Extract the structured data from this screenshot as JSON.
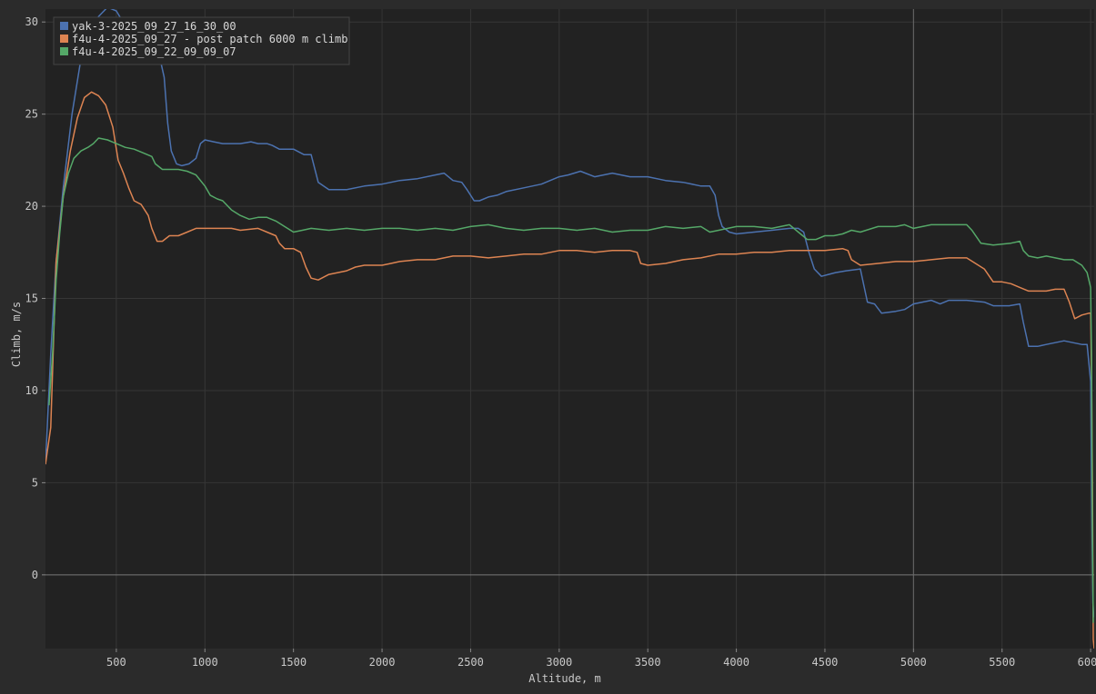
{
  "chart_data": {
    "type": "line",
    "xlabel": "Altitude, m",
    "ylabel": "Climb, m/s",
    "xlim": [
      100,
      6020
    ],
    "ylim": [
      -4,
      30.7
    ],
    "x_ticks": [
      500,
      1000,
      1500,
      2000,
      2500,
      3000,
      3500,
      4000,
      4500,
      5000,
      5500,
      6000
    ],
    "y_ticks": [
      0,
      5,
      10,
      15,
      20,
      25,
      30
    ],
    "grid": true,
    "legend_position": "top-left",
    "series": [
      {
        "name": "yak-3-2025_09_27_16_30_00",
        "color": "#4c72b0",
        "points": [
          [
            100,
            6
          ],
          [
            130,
            12
          ],
          [
            160,
            17
          ],
          [
            200,
            21
          ],
          [
            250,
            25
          ],
          [
            300,
            28
          ],
          [
            350,
            29.5
          ],
          [
            400,
            30.3
          ],
          [
            450,
            30.8
          ],
          [
            500,
            30.6
          ],
          [
            550,
            29.8
          ],
          [
            600,
            29
          ],
          [
            650,
            28.7
          ],
          [
            700,
            28.6
          ],
          [
            740,
            28.3
          ],
          [
            770,
            27
          ],
          [
            790,
            24.5
          ],
          [
            810,
            23
          ],
          [
            840,
            22.3
          ],
          [
            870,
            22.2
          ],
          [
            910,
            22.3
          ],
          [
            950,
            22.6
          ],
          [
            975,
            23.4
          ],
          [
            1000,
            23.6
          ],
          [
            1050,
            23.5
          ],
          [
            1100,
            23.4
          ],
          [
            1200,
            23.4
          ],
          [
            1260,
            23.5
          ],
          [
            1300,
            23.4
          ],
          [
            1350,
            23.4
          ],
          [
            1380,
            23.3
          ],
          [
            1420,
            23.1
          ],
          [
            1500,
            23.1
          ],
          [
            1560,
            22.8
          ],
          [
            1600,
            22.8
          ],
          [
            1640,
            21.3
          ],
          [
            1700,
            20.9
          ],
          [
            1800,
            20.9
          ],
          [
            1900,
            21.1
          ],
          [
            2000,
            21.2
          ],
          [
            2100,
            21.4
          ],
          [
            2200,
            21.5
          ],
          [
            2300,
            21.7
          ],
          [
            2350,
            21.8
          ],
          [
            2400,
            21.4
          ],
          [
            2450,
            21.3
          ],
          [
            2480,
            20.9
          ],
          [
            2520,
            20.3
          ],
          [
            2550,
            20.3
          ],
          [
            2600,
            20.5
          ],
          [
            2650,
            20.6
          ],
          [
            2700,
            20.8
          ],
          [
            2800,
            21.0
          ],
          [
            2900,
            21.2
          ],
          [
            3000,
            21.6
          ],
          [
            3050,
            21.7
          ],
          [
            3120,
            21.9
          ],
          [
            3200,
            21.6
          ],
          [
            3300,
            21.8
          ],
          [
            3400,
            21.6
          ],
          [
            3500,
            21.6
          ],
          [
            3600,
            21.4
          ],
          [
            3700,
            21.3
          ],
          [
            3800,
            21.1
          ],
          [
            3850,
            21.1
          ],
          [
            3880,
            20.6
          ],
          [
            3900,
            19.5
          ],
          [
            3920,
            18.9
          ],
          [
            3960,
            18.6
          ],
          [
            4000,
            18.5
          ],
          [
            4100,
            18.6
          ],
          [
            4200,
            18.7
          ],
          [
            4300,
            18.8
          ],
          [
            4350,
            18.8
          ],
          [
            4380,
            18.6
          ],
          [
            4410,
            17.5
          ],
          [
            4440,
            16.6
          ],
          [
            4480,
            16.2
          ],
          [
            4520,
            16.3
          ],
          [
            4560,
            16.4
          ],
          [
            4620,
            16.5
          ],
          [
            4700,
            16.6
          ],
          [
            4740,
            14.8
          ],
          [
            4780,
            14.7
          ],
          [
            4820,
            14.2
          ],
          [
            4900,
            14.3
          ],
          [
            4950,
            14.4
          ],
          [
            5000,
            14.7
          ],
          [
            5050,
            14.8
          ],
          [
            5100,
            14.9
          ],
          [
            5150,
            14.7
          ],
          [
            5200,
            14.9
          ],
          [
            5300,
            14.9
          ],
          [
            5400,
            14.8
          ],
          [
            5450,
            14.6
          ],
          [
            5540,
            14.6
          ],
          [
            5600,
            14.7
          ],
          [
            5620,
            13.7
          ],
          [
            5650,
            12.4
          ],
          [
            5700,
            12.4
          ],
          [
            5750,
            12.5
          ],
          [
            5800,
            12.6
          ],
          [
            5850,
            12.7
          ],
          [
            5900,
            12.6
          ],
          [
            5950,
            12.5
          ],
          [
            5980,
            12.5
          ],
          [
            6000,
            10.5
          ],
          [
            6008,
            2
          ],
          [
            6013,
            -1.5
          ],
          [
            6018,
            -2.3
          ]
        ]
      },
      {
        "name": "f4u-4-2025_09_27 - post patch 6000 m climb",
        "color": "#dd8452",
        "points": [
          [
            100,
            6
          ],
          [
            130,
            8
          ],
          [
            160,
            17
          ],
          [
            200,
            20.5
          ],
          [
            240,
            23
          ],
          [
            280,
            24.8
          ],
          [
            320,
            25.9
          ],
          [
            360,
            26.2
          ],
          [
            400,
            26
          ],
          [
            440,
            25.5
          ],
          [
            480,
            24.3
          ],
          [
            510,
            22.5
          ],
          [
            540,
            21.8
          ],
          [
            570,
            21
          ],
          [
            600,
            20.3
          ],
          [
            640,
            20.1
          ],
          [
            680,
            19.5
          ],
          [
            700,
            18.8
          ],
          [
            730,
            18.1
          ],
          [
            760,
            18.1
          ],
          [
            800,
            18.4
          ],
          [
            850,
            18.4
          ],
          [
            900,
            18.6
          ],
          [
            950,
            18.8
          ],
          [
            1000,
            18.8
          ],
          [
            1100,
            18.8
          ],
          [
            1150,
            18.8
          ],
          [
            1200,
            18.7
          ],
          [
            1300,
            18.8
          ],
          [
            1350,
            18.6
          ],
          [
            1400,
            18.4
          ],
          [
            1420,
            18
          ],
          [
            1450,
            17.7
          ],
          [
            1500,
            17.7
          ],
          [
            1540,
            17.5
          ],
          [
            1570,
            16.7
          ],
          [
            1600,
            16.1
          ],
          [
            1640,
            16.0
          ],
          [
            1700,
            16.3
          ],
          [
            1750,
            16.4
          ],
          [
            1800,
            16.5
          ],
          [
            1850,
            16.7
          ],
          [
            1900,
            16.8
          ],
          [
            2000,
            16.8
          ],
          [
            2050,
            16.9
          ],
          [
            2100,
            17.0
          ],
          [
            2200,
            17.1
          ],
          [
            2300,
            17.1
          ],
          [
            2400,
            17.3
          ],
          [
            2500,
            17.3
          ],
          [
            2600,
            17.2
          ],
          [
            2700,
            17.3
          ],
          [
            2800,
            17.4
          ],
          [
            2900,
            17.4
          ],
          [
            3000,
            17.6
          ],
          [
            3100,
            17.6
          ],
          [
            3200,
            17.5
          ],
          [
            3300,
            17.6
          ],
          [
            3400,
            17.6
          ],
          [
            3440,
            17.5
          ],
          [
            3460,
            16.9
          ],
          [
            3500,
            16.8
          ],
          [
            3600,
            16.9
          ],
          [
            3700,
            17.1
          ],
          [
            3800,
            17.2
          ],
          [
            3900,
            17.4
          ],
          [
            4000,
            17.4
          ],
          [
            4100,
            17.5
          ],
          [
            4200,
            17.5
          ],
          [
            4300,
            17.6
          ],
          [
            4400,
            17.6
          ],
          [
            4500,
            17.6
          ],
          [
            4600,
            17.7
          ],
          [
            4630,
            17.6
          ],
          [
            4650,
            17.1
          ],
          [
            4700,
            16.8
          ],
          [
            4800,
            16.9
          ],
          [
            4900,
            17.0
          ],
          [
            5000,
            17.0
          ],
          [
            5100,
            17.1
          ],
          [
            5200,
            17.2
          ],
          [
            5300,
            17.2
          ],
          [
            5350,
            16.9
          ],
          [
            5400,
            16.6
          ],
          [
            5450,
            15.9
          ],
          [
            5500,
            15.9
          ],
          [
            5550,
            15.8
          ],
          [
            5600,
            15.6
          ],
          [
            5650,
            15.4
          ],
          [
            5700,
            15.4
          ],
          [
            5750,
            15.4
          ],
          [
            5800,
            15.5
          ],
          [
            5850,
            15.5
          ],
          [
            5880,
            14.8
          ],
          [
            5910,
            13.9
          ],
          [
            5950,
            14.1
          ],
          [
            5990,
            14.2
          ],
          [
            6000,
            14.2
          ],
          [
            6005,
            11
          ],
          [
            6010,
            5
          ],
          [
            6015,
            -3.5
          ],
          [
            6020,
            -4
          ]
        ]
      },
      {
        "name": "f4u-4-2025_09_22_09_09_07",
        "color": "#55a868",
        "points": [
          [
            120,
            9.2
          ],
          [
            140,
            12
          ],
          [
            160,
            16
          ],
          [
            180,
            18.5
          ],
          [
            200,
            20.5
          ],
          [
            230,
            21.8
          ],
          [
            260,
            22.6
          ],
          [
            300,
            23.0
          ],
          [
            340,
            23.2
          ],
          [
            370,
            23.4
          ],
          [
            400,
            23.7
          ],
          [
            450,
            23.6
          ],
          [
            500,
            23.4
          ],
          [
            550,
            23.2
          ],
          [
            600,
            23.1
          ],
          [
            650,
            22.9
          ],
          [
            700,
            22.7
          ],
          [
            720,
            22.3
          ],
          [
            760,
            22.0
          ],
          [
            800,
            22.0
          ],
          [
            850,
            22.0
          ],
          [
            900,
            21.9
          ],
          [
            950,
            21.7
          ],
          [
            1000,
            21.1
          ],
          [
            1030,
            20.6
          ],
          [
            1070,
            20.4
          ],
          [
            1100,
            20.3
          ],
          [
            1150,
            19.8
          ],
          [
            1200,
            19.5
          ],
          [
            1250,
            19.3
          ],
          [
            1300,
            19.4
          ],
          [
            1350,
            19.4
          ],
          [
            1400,
            19.2
          ],
          [
            1450,
            18.9
          ],
          [
            1500,
            18.6
          ],
          [
            1550,
            18.7
          ],
          [
            1600,
            18.8
          ],
          [
            1700,
            18.7
          ],
          [
            1800,
            18.8
          ],
          [
            1900,
            18.7
          ],
          [
            2000,
            18.8
          ],
          [
            2100,
            18.8
          ],
          [
            2200,
            18.7
          ],
          [
            2300,
            18.8
          ],
          [
            2400,
            18.7
          ],
          [
            2500,
            18.9
          ],
          [
            2600,
            19.0
          ],
          [
            2700,
            18.8
          ],
          [
            2800,
            18.7
          ],
          [
            2900,
            18.8
          ],
          [
            3000,
            18.8
          ],
          [
            3100,
            18.7
          ],
          [
            3200,
            18.8
          ],
          [
            3300,
            18.6
          ],
          [
            3400,
            18.7
          ],
          [
            3500,
            18.7
          ],
          [
            3600,
            18.9
          ],
          [
            3700,
            18.8
          ],
          [
            3800,
            18.9
          ],
          [
            3850,
            18.6
          ],
          [
            3900,
            18.7
          ],
          [
            4000,
            18.9
          ],
          [
            4100,
            18.9
          ],
          [
            4200,
            18.8
          ],
          [
            4300,
            19.0
          ],
          [
            4350,
            18.6
          ],
          [
            4400,
            18.2
          ],
          [
            4450,
            18.2
          ],
          [
            4500,
            18.4
          ],
          [
            4550,
            18.4
          ],
          [
            4600,
            18.5
          ],
          [
            4650,
            18.7
          ],
          [
            4700,
            18.6
          ],
          [
            4800,
            18.9
          ],
          [
            4900,
            18.9
          ],
          [
            4950,
            19.0
          ],
          [
            5000,
            18.8
          ],
          [
            5050,
            18.9
          ],
          [
            5100,
            19.0
          ],
          [
            5200,
            19.0
          ],
          [
            5300,
            19.0
          ],
          [
            5330,
            18.7
          ],
          [
            5380,
            18.0
          ],
          [
            5450,
            17.9
          ],
          [
            5550,
            18.0
          ],
          [
            5600,
            18.1
          ],
          [
            5620,
            17.6
          ],
          [
            5650,
            17.3
          ],
          [
            5700,
            17.2
          ],
          [
            5750,
            17.3
          ],
          [
            5800,
            17.2
          ],
          [
            5850,
            17.1
          ],
          [
            5900,
            17.1
          ],
          [
            5950,
            16.8
          ],
          [
            5980,
            16.4
          ],
          [
            6000,
            15.6
          ],
          [
            6005,
            12
          ],
          [
            6010,
            2
          ],
          [
            6015,
            -2.6
          ]
        ]
      }
    ]
  }
}
